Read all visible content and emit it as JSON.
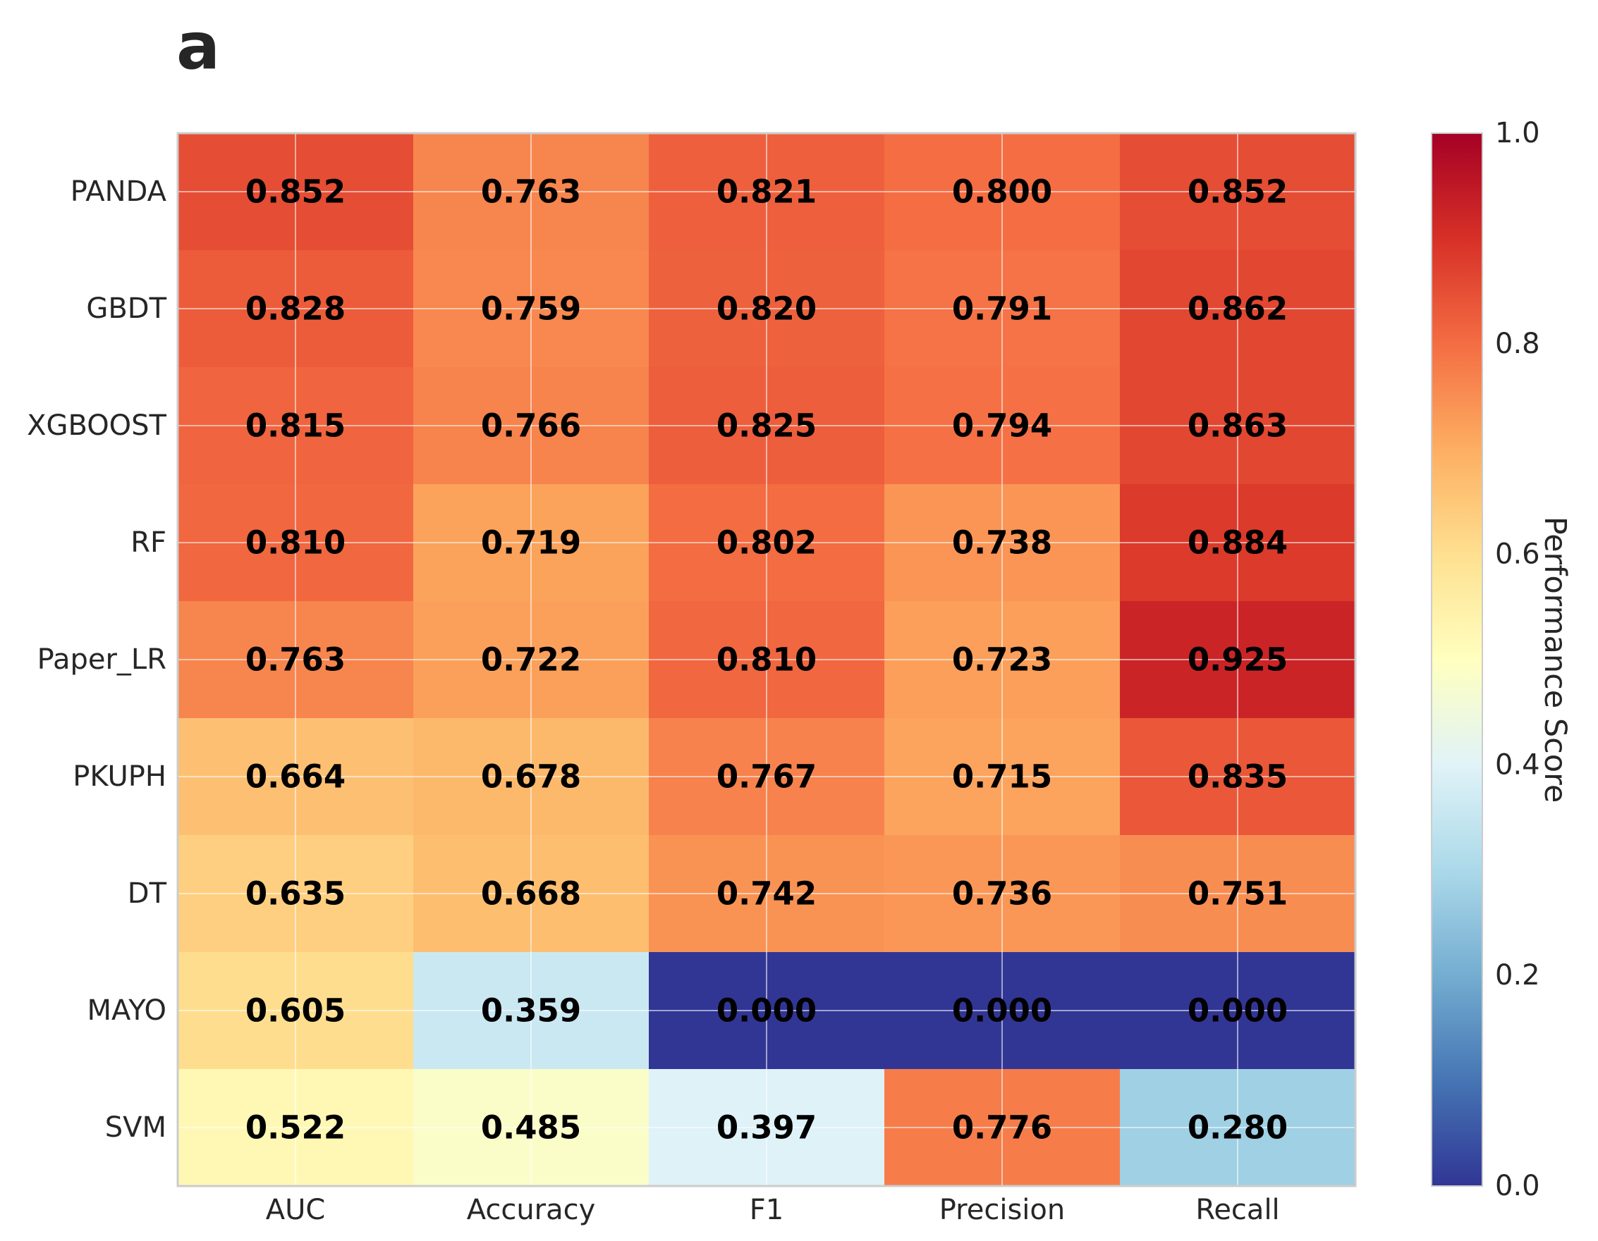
{
  "panel_label": "a",
  "chart_data": {
    "type": "heatmap",
    "rows": [
      "PANDA",
      "GBDT",
      "XGBOOST",
      "RF",
      "Paper_LR",
      "PKUPH",
      "DT",
      "MAYO",
      "SVM"
    ],
    "columns": [
      "AUC",
      "Accuracy",
      "F1",
      "Precision",
      "Recall"
    ],
    "values": [
      [
        0.852,
        0.763,
        0.821,
        0.8,
        0.852
      ],
      [
        0.828,
        0.759,
        0.82,
        0.791,
        0.862
      ],
      [
        0.815,
        0.766,
        0.825,
        0.794,
        0.863
      ],
      [
        0.81,
        0.719,
        0.802,
        0.738,
        0.884
      ],
      [
        0.763,
        0.722,
        0.81,
        0.723,
        0.925
      ],
      [
        0.664,
        0.678,
        0.767,
        0.715,
        0.835
      ],
      [
        0.635,
        0.668,
        0.742,
        0.736,
        0.751
      ],
      [
        0.605,
        0.359,
        0.0,
        0.0,
        0.0
      ],
      [
        0.522,
        0.485,
        0.397,
        0.776,
        0.28
      ]
    ],
    "colormap": "RdYlBu_r",
    "vmin": 0.0,
    "vmax": 1.0,
    "colorbar": {
      "label": "Performance Score",
      "ticks": [
        "0.0",
        "0.2",
        "0.4",
        "0.6",
        "0.8",
        "1.0"
      ]
    },
    "grid": true
  }
}
